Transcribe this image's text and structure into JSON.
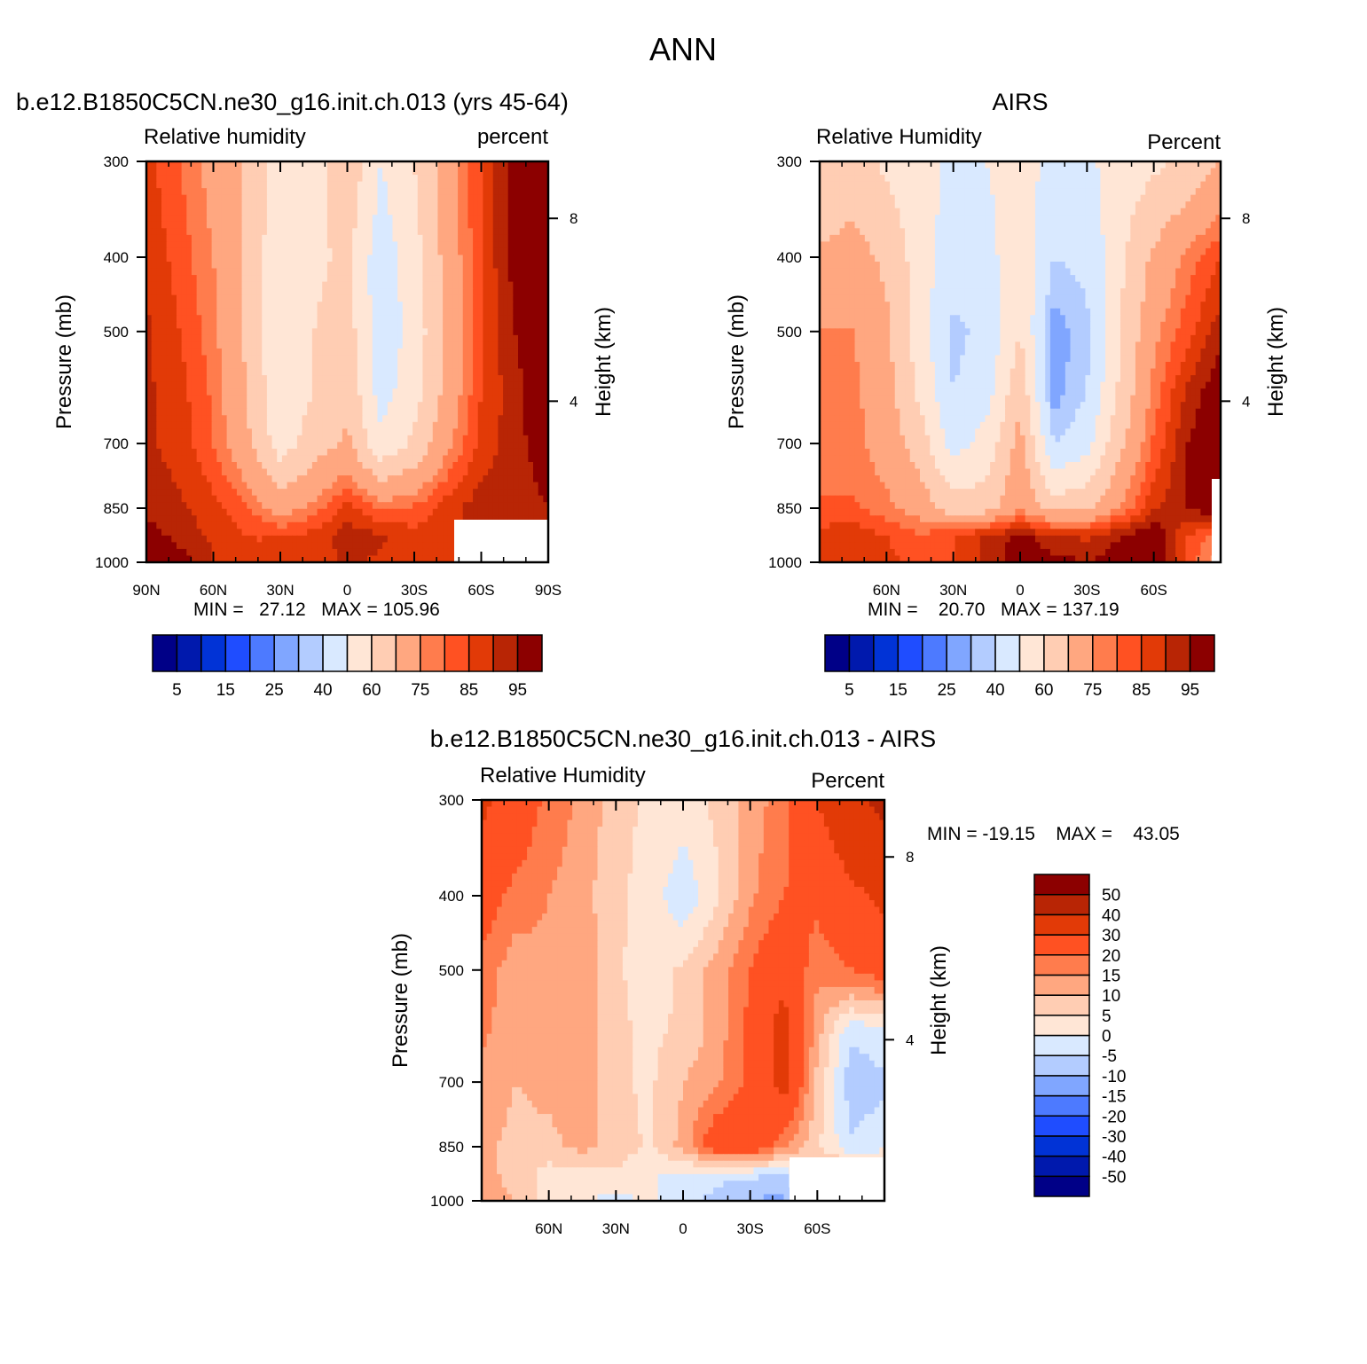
{
  "main_title": "ANN",
  "chart_data": [
    {
      "type": "heatmap",
      "id": "model",
      "title": "b.e12.B1850C5CN.ne30_g16.init.ch.013 (yrs 45-64)",
      "left_label": "Relative humidity",
      "right_label": "percent",
      "xlabel": "",
      "ylabel": "Pressure (mb)",
      "y2label": "Height (km)",
      "x_ticks": [
        "90N",
        "60N",
        "30N",
        "0",
        "30S",
        "60S",
        "90S"
      ],
      "x_range": [
        90,
        -90
      ],
      "y_ticks": [
        300,
        400,
        500,
        700,
        850,
        1000
      ],
      "y_range": [
        300,
        1000
      ],
      "y_scale": "log",
      "y2_ticks": [
        8,
        4
      ],
      "stats": "MIN =   27.12   MAX = 105.96",
      "lat": [
        90,
        75,
        60,
        45,
        30,
        15,
        0,
        -15,
        -30,
        -45,
        -60,
        -75,
        -90
      ],
      "p": [
        300,
        400,
        500,
        600,
        700,
        850,
        925,
        1000
      ],
      "values": [
        [
          82,
          75,
          67,
          58,
          45,
          44,
          58,
          40,
          50,
          66,
          80,
          92,
          97
        ],
        [
          84,
          78,
          70,
          58,
          42,
          48,
          52,
          34,
          46,
          64,
          80,
          92,
          97
        ],
        [
          86,
          80,
          72,
          58,
          40,
          50,
          55,
          33,
          44,
          62,
          80,
          90,
          96
        ],
        [
          86,
          82,
          74,
          60,
          42,
          50,
          58,
          36,
          46,
          64,
          80,
          88,
          95
        ],
        [
          86,
          83,
          75,
          62,
          45,
          55,
          62,
          42,
          52,
          68,
          82,
          88,
          94
        ],
        [
          88,
          86,
          82,
          76,
          66,
          72,
          82,
          74,
          76,
          83,
          88,
          86,
          90
        ],
        [
          93,
          88,
          84,
          80,
          80,
          82,
          88,
          86,
          82,
          84,
          85,
          85,
          85
        ],
        [
          98,
          93,
          85,
          80,
          80,
          82,
          86,
          84,
          80,
          80,
          78,
          78,
          78
        ]
      ],
      "missing": "lower-right block (below ground)"
    },
    {
      "type": "heatmap",
      "id": "obs",
      "title": "AIRS",
      "left_label": "Relative Humidity",
      "right_label": "Percent",
      "xlabel": "",
      "ylabel": "Pressure (mb)",
      "y2label": "Height (km)",
      "x_ticks": [
        "60N",
        "30N",
        "0",
        "30S",
        "60S"
      ],
      "x_range": [
        90,
        -90
      ],
      "y_ticks": [
        300,
        400,
        500,
        700,
        850,
        1000
      ],
      "y_range": [
        300,
        1000
      ],
      "y_scale": "log",
      "y2_ticks": [
        8,
        4
      ],
      "stats": "MIN =    20.70   MAX = 137.19",
      "lat": [
        90,
        75,
        60,
        45,
        30,
        15,
        0,
        -15,
        -30,
        -45,
        -60,
        -75,
        -90
      ],
      "p": [
        300,
        400,
        500,
        600,
        700,
        850,
        925,
        1000
      ],
      "values": [
        [
          50,
          55,
          48,
          44,
          38,
          40,
          45,
          36,
          38,
          45,
          48,
          52,
          60
        ],
        [
          62,
          64,
          58,
          45,
          34,
          36,
          48,
          30,
          32,
          48,
          62,
          72,
          80
        ],
        [
          70,
          70,
          62,
          45,
          28,
          32,
          50,
          22,
          28,
          50,
          68,
          78,
          88
        ],
        [
          72,
          72,
          64,
          48,
          30,
          36,
          58,
          22,
          30,
          52,
          72,
          86,
          95
        ],
        [
          72,
          72,
          66,
          55,
          36,
          44,
          64,
          30,
          36,
          58,
          76,
          90,
          98
        ],
        [
          76,
          76,
          72,
          66,
          55,
          56,
          68,
          56,
          58,
          70,
          84,
          90,
          95
        ],
        [
          82,
          84,
          80,
          76,
          80,
          86,
          92,
          86,
          84,
          90,
          96,
          80,
          72
        ],
        [
          84,
          84,
          82,
          78,
          80,
          86,
          94,
          92,
          90,
          94,
          98,
          78,
          66
        ]
      ],
      "missing": "strip at southern edge near surface"
    },
    {
      "type": "heatmap",
      "id": "diff",
      "title": "b.e12.B1850C5CN.ne30_g16.init.ch.013 - AIRS",
      "left_label": "Relative Humidity",
      "right_label": "Percent",
      "xlabel": "",
      "ylabel": "Pressure (mb)",
      "y2label": "Height (km)",
      "x_ticks": [
        "60N",
        "30N",
        "0",
        "30S",
        "60S"
      ],
      "x_range": [
        90,
        -90
      ],
      "y_ticks": [
        300,
        400,
        500,
        700,
        850,
        1000
      ],
      "y_range": [
        300,
        1000
      ],
      "y_scale": "log",
      "y2_ticks": [
        8,
        4
      ],
      "stats": "MIN = -19.15    MAX =    43.05",
      "lat": [
        90,
        75,
        60,
        45,
        30,
        15,
        0,
        -15,
        -30,
        -45,
        -60,
        -75,
        -90
      ],
      "p": [
        300,
        400,
        500,
        600,
        700,
        850,
        925,
        1000
      ],
      "values": [
        [
          32,
          26,
          18,
          14,
          7,
          4,
          3,
          6,
          12,
          18,
          30,
          38,
          42
        ],
        [
          24,
          18,
          15,
          12,
          6,
          3,
          -4,
          4,
          14,
          20,
          22,
          28,
          32
        ],
        [
          18,
          12,
          14,
          14,
          6,
          2,
          6,
          12,
          20,
          28,
          16,
          20,
          24
        ],
        [
          16,
          12,
          14,
          14,
          6,
          4,
          6,
          12,
          22,
          34,
          12,
          -4,
          -2
        ],
        [
          14,
          10,
          12,
          14,
          6,
          4,
          10,
          14,
          22,
          34,
          8,
          -8,
          -6
        ],
        [
          12,
          8,
          8,
          12,
          8,
          4,
          12,
          26,
          26,
          16,
          6,
          -4,
          -2
        ],
        [
          12,
          8,
          3,
          2,
          4,
          1,
          -2,
          -4,
          -4,
          -6,
          12,
          14,
          15
        ],
        [
          14,
          10,
          3,
          1,
          -2,
          1,
          -4,
          -6,
          -10,
          -12,
          5,
          5,
          5
        ]
      ],
      "missing": "lower-right block (below ground)"
    }
  ],
  "colorbar_top": {
    "colors": [
      "#000087",
      "#0019AD",
      "#0133D6",
      "#1F4DFF",
      "#4D7AFF",
      "#80A6FF",
      "#B3CCFF",
      "#D9E9FF",
      "#FFE6D6",
      "#FFCDB3",
      "#FFA780",
      "#FF7C4D",
      "#FF5122",
      "#E23A07",
      "#B82505",
      "#8C0000"
    ],
    "levels": [
      "5",
      "15",
      "25",
      "40",
      "60",
      "75",
      "85",
      "95"
    ]
  },
  "colorbar_diff": {
    "colors": [
      "#000087",
      "#0019AD",
      "#0133D6",
      "#1F4DFF",
      "#4D7AFF",
      "#80A6FF",
      "#B3CCFF",
      "#D9E9FF",
      "#FFE6D6",
      "#FFCDB3",
      "#FFA780",
      "#FF7C4D",
      "#FF5122",
      "#E23A07",
      "#B82505",
      "#8C0000"
    ],
    "levels": [
      "-50",
      "-40",
      "-30",
      "-20",
      "-15",
      "-10",
      "-5",
      "0",
      "5",
      "10",
      "15",
      "20",
      "30",
      "40",
      "50"
    ]
  },
  "levels_top": [
    0,
    5,
    10,
    15,
    20,
    25,
    30,
    40,
    50,
    60,
    70,
    75,
    80,
    85,
    90,
    95
  ],
  "levels_diff": [
    -50,
    -40,
    -30,
    -20,
    -15,
    -10,
    -5,
    0,
    5,
    10,
    15,
    20,
    30,
    40,
    50
  ]
}
